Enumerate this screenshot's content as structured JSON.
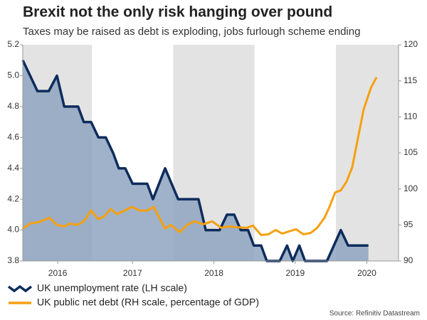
{
  "chart_data": {
    "type": "line",
    "title": "Brexit not the only risk hanging over pound",
    "subtitle": "Taxes may be raised as debt is exploding, jobs furlough scheme ending",
    "source": "Source: Refinitiv Datastream",
    "xlim": [
      2016.15,
      2020.77
    ],
    "xticks": [
      {
        "value": 2016.58,
        "label": "2016"
      },
      {
        "value": 2017.5,
        "label": "2017"
      },
      {
        "value": 2018.5,
        "label": "2018"
      },
      {
        "value": 2019.5,
        "label": "2019"
      },
      {
        "value": 2020.38,
        "label": "2020"
      }
    ],
    "ylim": [
      3.8,
      5.2
    ],
    "yticks": [
      3.8,
      {
        "value": 4,
        "label": "4.0"
      },
      4.2,
      4.4,
      4.6,
      4.8,
      {
        "value": 5,
        "label": "5.0"
      },
      5.2
    ],
    "y2lim": [
      90,
      120
    ],
    "y2ticks": [
      90,
      95,
      100,
      105,
      110,
      115,
      120
    ],
    "series": [
      {
        "name": "UK unemployment rate (LH scale)",
        "color": "#0d2c5c",
        "area_color": "#8fa5c0",
        "x": [
          2016.15,
          2016.24,
          2016.33,
          2016.47,
          2016.57,
          2016.66,
          2016.83,
          2016.9,
          2016.99,
          2017.08,
          2017.17,
          2017.26,
          2017.33,
          2017.41,
          2017.5,
          2017.68,
          2017.75,
          2017.9,
          2018.06,
          2018.31,
          2018.4,
          2018.57,
          2018.66,
          2018.75,
          2018.83,
          2018.92,
          2018.99,
          2019.08,
          2019.15,
          2019.31,
          2019.4,
          2019.47,
          2019.55,
          2019.62,
          2019.89,
          2020.06,
          2020.15,
          2020.4
        ],
        "values": [
          5.1,
          5.0,
          4.9,
          4.9,
          5.0,
          4.8,
          4.8,
          4.7,
          4.7,
          4.6,
          4.6,
          4.5,
          4.4,
          4.4,
          4.3,
          4.3,
          4.2,
          4.4,
          4.2,
          4.2,
          4.0,
          4.0,
          4.1,
          4.1,
          4.0,
          4.0,
          3.9,
          3.9,
          3.8,
          3.8,
          3.9,
          3.8,
          3.9,
          3.8,
          3.8,
          4.0,
          3.9,
          3.9
        ]
      },
      {
        "name": "UK public net debt (RH scale, percentage of GDP)",
        "color": "#f5a00f",
        "axis": "y2",
        "x": [
          2016.15,
          2016.24,
          2016.35,
          2016.48,
          2016.57,
          2016.66,
          2016.73,
          2016.82,
          2016.9,
          2016.99,
          2017.08,
          2017.15,
          2017.23,
          2017.31,
          2017.4,
          2017.49,
          2017.59,
          2017.68,
          2017.76,
          2017.9,
          2017.97,
          2018.08,
          2018.17,
          2018.26,
          2018.37,
          2018.48,
          2018.59,
          2018.68,
          2018.76,
          2018.9,
          2018.98,
          2019.08,
          2019.17,
          2019.26,
          2019.34,
          2019.42,
          2019.51,
          2019.6,
          2019.69,
          2019.77,
          2019.86,
          2019.92,
          2019.99,
          2020.06,
          2020.13,
          2020.2,
          2020.27,
          2020.34,
          2020.43,
          2020.5
        ],
        "values": [
          94.5,
          95.2,
          95.4,
          96,
          95,
          94.8,
          95.2,
          95,
          95.5,
          97,
          95.8,
          96.2,
          97.2,
          96.5,
          97,
          97.5,
          97,
          97,
          97.5,
          94.5,
          95,
          94,
          95,
          95.5,
          95.1,
          95.5,
          94.6,
          94.8,
          94.7,
          94.6,
          94.9,
          93.6,
          93.7,
          94.3,
          93.8,
          94.1,
          94.4,
          93.7,
          93.9,
          94.6,
          96,
          97.5,
          99.5,
          99.8,
          101,
          103,
          107,
          111,
          114,
          115.5
        ]
      }
    ],
    "band_color": "#e3e3e3"
  }
}
